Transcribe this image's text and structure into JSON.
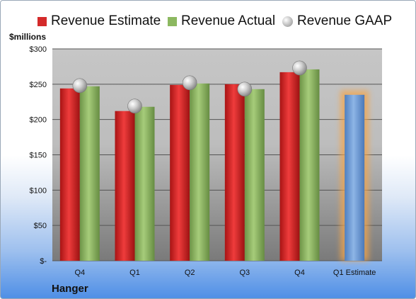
{
  "chart_data": {
    "type": "bar",
    "title": "",
    "ylabel": "$millions",
    "xlabel": "",
    "company": "Hanger",
    "categories": [
      "Q4",
      "Q1",
      "Q2",
      "Q3",
      "Q4",
      "Q1 Estimate"
    ],
    "ylim": [
      0,
      300
    ],
    "yticks": [
      0,
      50,
      100,
      150,
      200,
      250,
      300
    ],
    "ytick_labels": [
      "$-",
      "$50",
      "$100",
      "$150",
      "$200",
      "$250",
      "$300"
    ],
    "grid": true,
    "legend_position": "top",
    "series": [
      {
        "name": "Revenue Estimate",
        "kind": "bar",
        "color": "#d42a2a",
        "values": [
          244,
          212,
          249,
          250,
          267,
          null
        ]
      },
      {
        "name": "Revenue Actual",
        "kind": "bar",
        "color": "#8cb860",
        "values": [
          247,
          218,
          251,
          243,
          271,
          null
        ]
      },
      {
        "name": "Revenue GAAP",
        "kind": "marker",
        "color": "#b8b8b8",
        "values": [
          248,
          219,
          252,
          243,
          273,
          null
        ]
      }
    ],
    "estimate": {
      "category": "Q1 Estimate",
      "value": 235,
      "color": "#6f9fd8",
      "glow": "#f5a54a"
    }
  }
}
